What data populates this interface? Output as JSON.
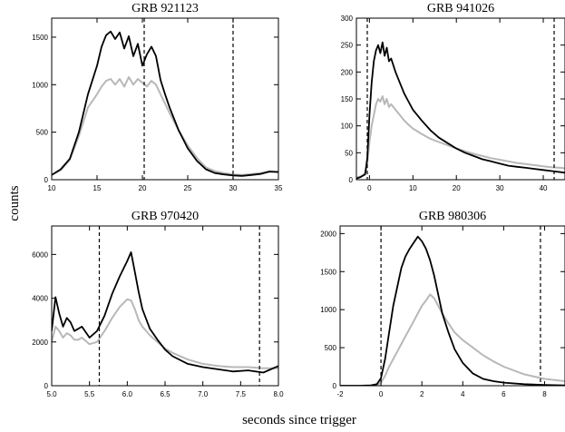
{
  "figure": {
    "ylabel": "counts",
    "xlabel": "seconds since trigger"
  },
  "colors": {
    "series_dark": "#000000",
    "series_light": "#b8b8b8",
    "axis": "#000000"
  },
  "chart_data": [
    {
      "type": "line",
      "title": "GRB 921123",
      "xlim": [
        10,
        35
      ],
      "ylim": [
        0,
        1700
      ],
      "xticks": [
        10,
        15,
        20,
        25,
        30,
        35
      ],
      "yticks": [
        0,
        500,
        1000,
        1500
      ],
      "vlines": [
        20.2,
        30.0
      ],
      "grid": false,
      "legend": "none",
      "series": [
        {
          "x": [
            10,
            11,
            12,
            13,
            14,
            15,
            15.5,
            16,
            16.5,
            17,
            17.5,
            18,
            18.5,
            19,
            19.5,
            20,
            20.5,
            21,
            21.5,
            22,
            22.5,
            23,
            24,
            25,
            26,
            27,
            28,
            29,
            30,
            31,
            32,
            33,
            34,
            35
          ],
          "y": [
            50,
            110,
            220,
            500,
            900,
            1200,
            1400,
            1520,
            1560,
            1480,
            1550,
            1380,
            1510,
            1300,
            1430,
            1200,
            1320,
            1400,
            1300,
            1050,
            900,
            760,
            520,
            330,
            200,
            110,
            70,
            55,
            45,
            40,
            50,
            60,
            85,
            80
          ]
        },
        {
          "x": [
            10,
            11,
            12,
            13,
            14,
            15,
            15.5,
            16,
            16.5,
            17,
            17.5,
            18,
            18.5,
            19,
            19.5,
            20,
            20.5,
            21,
            21.5,
            22,
            22.5,
            23,
            24,
            25,
            26,
            27,
            28,
            29,
            30,
            31,
            32,
            33,
            34,
            35
          ],
          "y": [
            50,
            100,
            210,
            460,
            760,
            900,
            980,
            1040,
            1060,
            1000,
            1060,
            980,
            1080,
            1000,
            1060,
            1020,
            980,
            1040,
            1000,
            900,
            800,
            700,
            520,
            360,
            230,
            130,
            90,
            70,
            55,
            50,
            60,
            70,
            90,
            85
          ]
        }
      ]
    },
    {
      "type": "line",
      "title": "GRB 941026",
      "xlim": [
        -3,
        45
      ],
      "ylim": [
        0,
        300
      ],
      "xticks": [
        0,
        10,
        20,
        30,
        40
      ],
      "yticks": [
        0,
        50,
        100,
        150,
        200,
        250,
        300
      ],
      "vlines": [
        -0.5,
        42.5
      ],
      "grid": false,
      "legend": "none",
      "series": [
        {
          "x": [
            -3,
            -2,
            -1,
            -0.5,
            0,
            0.5,
            1,
            1.5,
            2,
            2.5,
            3,
            3.5,
            4,
            4.5,
            5,
            6,
            7,
            8,
            9,
            10,
            12,
            14,
            16,
            18,
            20,
            22,
            24,
            26,
            28,
            30,
            32,
            34,
            36,
            38,
            40,
            42,
            44,
            45
          ],
          "y": [
            2,
            5,
            10,
            40,
            120,
            180,
            220,
            240,
            250,
            235,
            255,
            230,
            245,
            220,
            225,
            200,
            180,
            160,
            145,
            130,
            110,
            92,
            78,
            68,
            58,
            50,
            44,
            38,
            34,
            30,
            26,
            24,
            22,
            20,
            18,
            16,
            14,
            13
          ]
        },
        {
          "x": [
            -3,
            -2,
            -1,
            -0.5,
            0,
            0.5,
            1,
            1.5,
            2,
            2.5,
            3,
            3.5,
            4,
            4.5,
            5,
            6,
            7,
            8,
            9,
            10,
            12,
            14,
            16,
            18,
            20,
            22,
            24,
            26,
            28,
            30,
            32,
            34,
            36,
            38,
            40,
            42,
            44,
            45
          ],
          "y": [
            4,
            6,
            12,
            30,
            70,
            100,
            120,
            140,
            150,
            145,
            155,
            140,
            150,
            135,
            140,
            130,
            120,
            110,
            102,
            95,
            85,
            76,
            70,
            64,
            58,
            53,
            48,
            44,
            40,
            37,
            34,
            31,
            29,
            27,
            25,
            23,
            22,
            21
          ]
        }
      ]
    },
    {
      "type": "line",
      "title": "GRB 970420",
      "xlim": [
        5.0,
        8.0
      ],
      "ylim": [
        0,
        7300
      ],
      "xticks": [
        5.0,
        5.5,
        6.0,
        6.5,
        7.0,
        7.5,
        8.0
      ],
      "xtick_labels": [
        "5.0",
        "5.5",
        "6.0",
        "6.5",
        "7.0",
        "7.5",
        "8.0"
      ],
      "yticks": [
        0,
        2000,
        4000,
        6000
      ],
      "vlines": [
        5.63,
        7.75
      ],
      "grid": false,
      "legend": "none",
      "series": [
        {
          "x": [
            5.0,
            5.05,
            5.1,
            5.15,
            5.2,
            5.25,
            5.3,
            5.35,
            5.4,
            5.5,
            5.6,
            5.7,
            5.8,
            5.9,
            6.0,
            6.05,
            6.1,
            6.15,
            6.2,
            6.3,
            6.4,
            6.5,
            6.6,
            6.8,
            7.0,
            7.2,
            7.4,
            7.6,
            7.8,
            8.0
          ],
          "y": [
            2500,
            4050,
            3300,
            2700,
            3100,
            2900,
            2500,
            2600,
            2700,
            2200,
            2500,
            3200,
            4200,
            5000,
            5700,
            6100,
            5200,
            4300,
            3500,
            2600,
            2100,
            1650,
            1350,
            1000,
            850,
            750,
            650,
            700,
            600,
            900
          ]
        },
        {
          "x": [
            5.0,
            5.05,
            5.1,
            5.15,
            5.2,
            5.25,
            5.3,
            5.35,
            5.4,
            5.5,
            5.6,
            5.7,
            5.8,
            5.9,
            6.0,
            6.05,
            6.1,
            6.15,
            6.2,
            6.3,
            6.4,
            6.5,
            6.6,
            6.8,
            7.0,
            7.2,
            7.4,
            7.6,
            7.8,
            8.0
          ],
          "y": [
            2000,
            2700,
            2500,
            2200,
            2400,
            2300,
            2100,
            2100,
            2200,
            1900,
            2000,
            2500,
            3100,
            3600,
            3950,
            3900,
            3500,
            3000,
            2700,
            2300,
            2000,
            1700,
            1500,
            1200,
            1000,
            900,
            850,
            850,
            800,
            800
          ]
        }
      ]
    },
    {
      "type": "line",
      "title": "GRB 980306",
      "xlim": [
        -2,
        9
      ],
      "ylim": [
        0,
        2100
      ],
      "xticks": [
        -2,
        0,
        2,
        4,
        6,
        8
      ],
      "yticks": [
        0,
        500,
        1000,
        1500,
        2000
      ],
      "vlines": [
        0.0,
        7.8
      ],
      "grid": false,
      "legend": "none",
      "series": [
        {
          "x": [
            -2,
            -1,
            -0.5,
            -0.2,
            0,
            0.2,
            0.4,
            0.6,
            0.8,
            1.0,
            1.2,
            1.4,
            1.6,
            1.8,
            2.0,
            2.2,
            2.4,
            2.6,
            2.8,
            3.0,
            3.3,
            3.6,
            4.0,
            4.5,
            5.0,
            5.5,
            6.0,
            7.0,
            8.0,
            9.0
          ],
          "y": [
            0,
            0,
            5,
            20,
            100,
            350,
            700,
            1050,
            1300,
            1550,
            1700,
            1800,
            1880,
            1960,
            1900,
            1800,
            1650,
            1450,
            1200,
            950,
            700,
            480,
            300,
            160,
            90,
            60,
            40,
            20,
            10,
            5
          ]
        },
        {
          "x": [
            -2,
            -1,
            -0.5,
            -0.2,
            0,
            0.2,
            0.4,
            0.6,
            0.8,
            1.0,
            1.2,
            1.4,
            1.6,
            1.8,
            2.0,
            2.2,
            2.4,
            2.6,
            2.8,
            3.0,
            3.3,
            3.6,
            4.0,
            4.5,
            5.0,
            5.5,
            6.0,
            7.0,
            8.0,
            9.0
          ],
          "y": [
            0,
            0,
            5,
            10,
            40,
            130,
            250,
            350,
            450,
            550,
            650,
            750,
            850,
            950,
            1050,
            1120,
            1200,
            1150,
            1050,
            950,
            820,
            700,
            600,
            500,
            400,
            320,
            250,
            150,
            90,
            60
          ]
        }
      ]
    }
  ]
}
